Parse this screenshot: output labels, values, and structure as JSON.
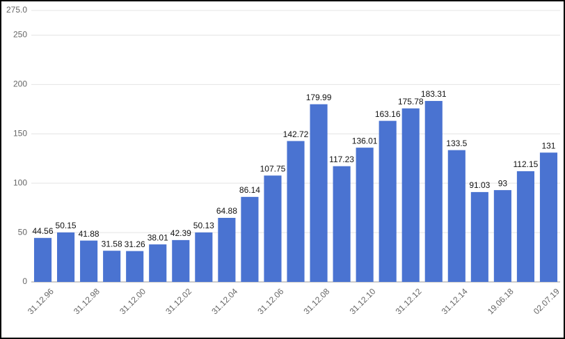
{
  "chart_data": {
    "type": "bar",
    "categories": [
      "31.12.96",
      null,
      "31.12.98",
      null,
      "31.12.00",
      null,
      "31.12.02",
      null,
      "31.12.04",
      null,
      "31.12.06",
      null,
      "31.12.08",
      null,
      "31.12.10",
      null,
      "31.12.12",
      null,
      "31.12.14",
      null,
      "19.06.18",
      null,
      "02.07.19"
    ],
    "values": [
      44.56,
      50.15,
      41.88,
      31.58,
      31.26,
      38.01,
      42.39,
      50.13,
      64.88,
      86.14,
      107.75,
      142.72,
      179.99,
      117.23,
      136.01,
      163.16,
      175.78,
      183.31,
      133.5,
      91.03,
      93,
      112.15,
      131
    ],
    "color": "#4a73d1",
    "ylim": [
      0,
      275
    ],
    "yticks": [
      0,
      50,
      100,
      150,
      200,
      250,
      {
        "value": 275,
        "label": "275.0"
      }
    ],
    "grid": true
  }
}
